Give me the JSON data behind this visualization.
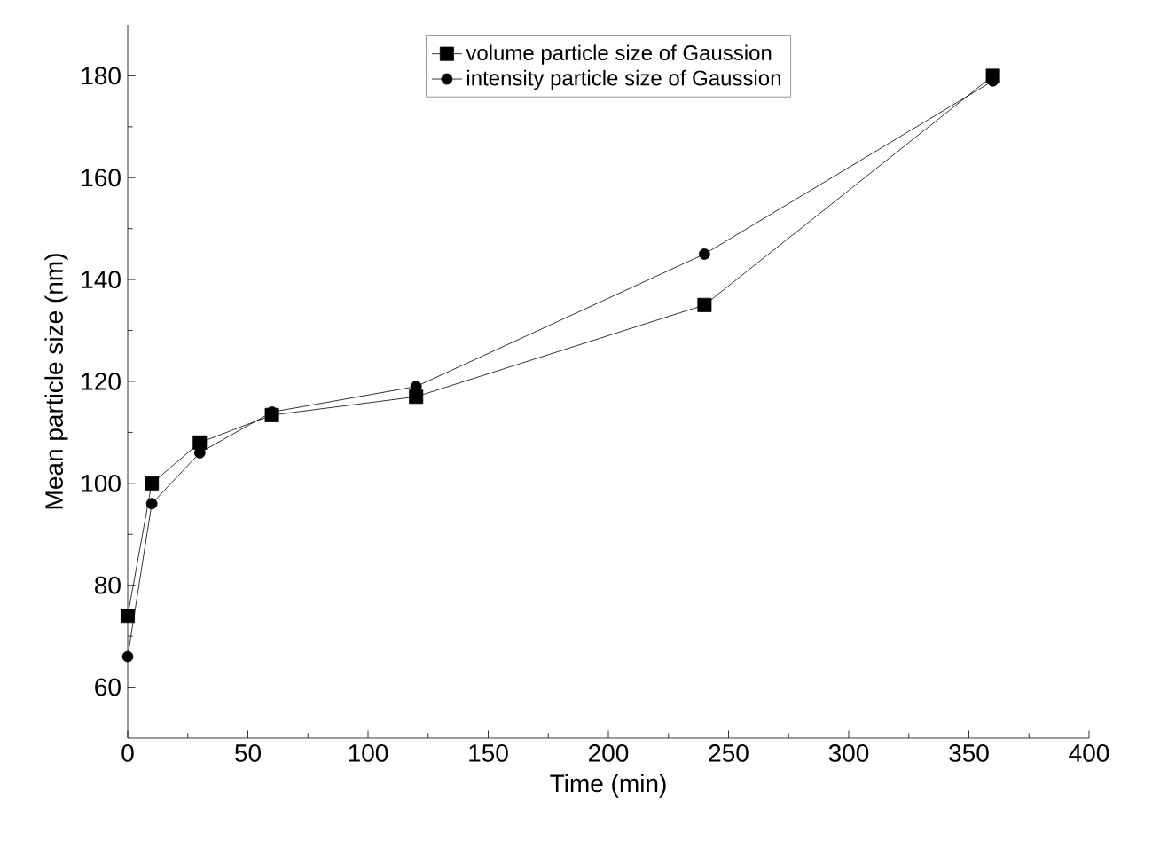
{
  "chart_data": {
    "type": "line",
    "xlabel": "Time (min)",
    "ylabel": "Mean particle size (nm)",
    "xlim": [
      0,
      400
    ],
    "xticks": [
      0,
      50,
      100,
      150,
      200,
      250,
      300,
      350,
      400
    ],
    "ylim": [
      50,
      190
    ],
    "yticks": [
      60,
      80,
      100,
      120,
      140,
      160,
      180
    ],
    "grid": false,
    "legend": "top",
    "line_style": "solid",
    "series": [
      {
        "name": "volume particle size of Gaussion",
        "color": "#000000",
        "marker": "square",
        "x": [
          0,
          10,
          30,
          60,
          120,
          240,
          360
        ],
        "values": [
          74,
          100,
          108,
          113.4,
          117,
          135,
          180
        ]
      },
      {
        "name": "intensity particle size of Gaussion",
        "color": "#000000",
        "marker": "circle",
        "x": [
          0,
          10,
          30,
          60,
          120,
          240,
          360
        ],
        "values": [
          66,
          96,
          106,
          114,
          119,
          145,
          179
        ]
      }
    ]
  }
}
